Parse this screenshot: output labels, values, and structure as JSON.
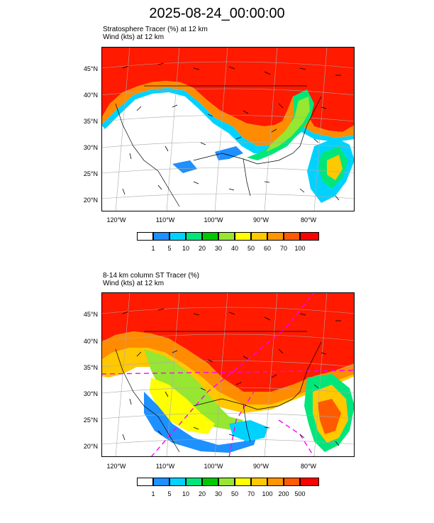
{
  "title": "2025-08-24_00:00:00",
  "panels": [
    {
      "label_line1": "Stratosphere Tracer   (%)     at   12 km",
      "label_line2": "Wind   (kts)     at   12 km",
      "lat_labels": [
        "45°N",
        "40°N",
        "35°N",
        "30°N",
        "25°N",
        "20°N"
      ],
      "lon_labels": [
        "120°W",
        "110°W",
        "100°W",
        "90°W",
        "80°W"
      ],
      "colorbar_labels": [
        "1",
        "5",
        "10",
        "20",
        "30",
        "40",
        "50",
        "60",
        "70",
        "100"
      ]
    },
    {
      "label_line1": "8-14 km column ST Tracer   (%)",
      "label_line2": "Wind   (kts)     at   12 km",
      "lat_labels": [
        "45°N",
        "40°N",
        "35°N",
        "30°N",
        "25°N",
        "20°N"
      ],
      "lon_labels": [
        "120°W",
        "110°W",
        "100°W",
        "90°W",
        "80°W"
      ],
      "colorbar_labels": [
        "1",
        "5",
        "10",
        "20",
        "30",
        "50",
        "70",
        "100",
        "200",
        "500"
      ]
    }
  ],
  "colorbar_colors": [
    "#ffffff",
    "#1e90ff",
    "#00d2ff",
    "#00e67a",
    "#00c800",
    "#96e632",
    "#ffff00",
    "#ffc800",
    "#ff9600",
    "#ff5a00",
    "#ff0000"
  ]
}
